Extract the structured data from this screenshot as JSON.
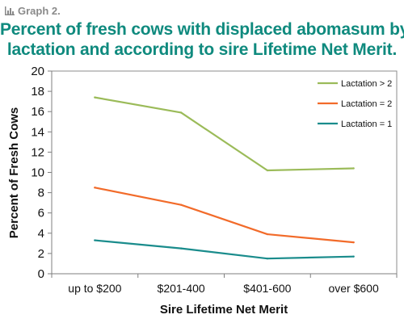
{
  "header": {
    "graph_label": "Graph 2.",
    "title_line1": "Percent of fresh cows with displaced abomasum by",
    "title_line2": "lactation and according to sire Lifetime Net Merit."
  },
  "chart_data": {
    "type": "line",
    "title": "Percent of fresh cows with displaced abomasum by lactation and according to sire Lifetime Net Merit.",
    "xlabel": "Sire Lifetime Net Merit",
    "ylabel": "Percent of Fresh Cows",
    "categories": [
      "up to $200",
      "$201-400",
      "$401-600",
      "over $600"
    ],
    "ylim": [
      0,
      20
    ],
    "yticks": [
      0,
      2,
      4,
      6,
      8,
      10,
      12,
      14,
      16,
      18,
      20
    ],
    "grid": false,
    "legend_position": "top-right",
    "series": [
      {
        "name": "Lactation > 2",
        "color": "#9bbb59",
        "values": [
          17.4,
          15.9,
          10.2,
          10.4
        ]
      },
      {
        "name": "Lactation = 2",
        "color": "#f26b2a",
        "values": [
          8.5,
          6.8,
          3.9,
          3.1
        ]
      },
      {
        "name": "Lactation = 1",
        "color": "#1a8c8c",
        "values": [
          3.3,
          2.5,
          1.5,
          1.7
        ]
      }
    ]
  }
}
